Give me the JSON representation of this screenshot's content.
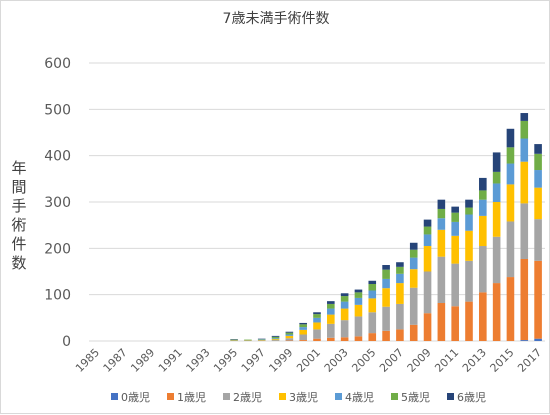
{
  "chart_data": {
    "type": "bar",
    "stacked": true,
    "title": "7歳未満手術件数",
    "ylabel": "年間手術件数",
    "xlabel": "",
    "ylim": [
      0,
      600
    ],
    "yticks": [
      0,
      100,
      200,
      300,
      400,
      500,
      600
    ],
    "grid": true,
    "legend_position": "bottom",
    "categories": [
      "1985",
      "1986",
      "1987",
      "1988",
      "1989",
      "1990",
      "1991",
      "1992",
      "1993",
      "1994",
      "1995",
      "1996",
      "1997",
      "1998",
      "1999",
      "2000",
      "2001",
      "2002",
      "2003",
      "2004",
      "2005",
      "2006",
      "2007",
      "2008",
      "2009",
      "2010",
      "2011",
      "2012",
      "2013",
      "2014",
      "2015",
      "2016",
      "2017"
    ],
    "x_tick_labels": [
      "1985",
      "1987",
      "1989",
      "1991",
      "1993",
      "1995",
      "1997",
      "1999",
      "2001",
      "2003",
      "2005",
      "2007",
      "2009",
      "2011",
      "2013",
      "2015",
      "2017"
    ],
    "series": [
      {
        "name": "0歳児",
        "color": "#4472C4",
        "values": [
          0,
          0,
          0,
          0,
          0,
          0,
          0,
          0,
          0,
          0,
          0,
          0,
          0,
          0,
          0,
          0,
          0,
          0,
          0,
          0,
          0,
          0,
          0,
          0,
          0,
          0,
          0,
          0,
          0,
          0,
          0,
          2,
          5
        ]
      },
      {
        "name": "1歳児",
        "color": "#ED7D31",
        "values": [
          0,
          0,
          0,
          0,
          0,
          0,
          0,
          0,
          0,
          0,
          0,
          0,
          0,
          0,
          1,
          2,
          5,
          7,
          8,
          10,
          17,
          22,
          25,
          35,
          60,
          82,
          75,
          85,
          105,
          125,
          138,
          175,
          168
        ]
      },
      {
        "name": "2歳児",
        "color": "#A5A5A5",
        "values": [
          0,
          0,
          0,
          0,
          0,
          0,
          0,
          0,
          0,
          0,
          0,
          0,
          1,
          2,
          5,
          12,
          20,
          30,
          37,
          43,
          45,
          52,
          55,
          80,
          90,
          100,
          92,
          88,
          100,
          100,
          120,
          120,
          90
        ]
      },
      {
        "name": "3歳児",
        "color": "#FFC000",
        "values": [
          0,
          0,
          0,
          0,
          0,
          0,
          0,
          0,
          0,
          0,
          1,
          1,
          1,
          2,
          5,
          10,
          15,
          20,
          25,
          25,
          30,
          40,
          45,
          40,
          55,
          58,
          60,
          65,
          65,
          75,
          80,
          90,
          68
        ]
      },
      {
        "name": "4歳児",
        "color": "#5B9BD5",
        "values": [
          0,
          0,
          0,
          0,
          0,
          0,
          0,
          0,
          0,
          0,
          1,
          1,
          1,
          2,
          3,
          6,
          10,
          13,
          15,
          15,
          17,
          20,
          20,
          25,
          25,
          25,
          30,
          35,
          35,
          40,
          45,
          50,
          38
        ]
      },
      {
        "name": "5歳児",
        "color": "#70AD47",
        "values": [
          0,
          0,
          0,
          0,
          0,
          0,
          0,
          0,
          0,
          0,
          1,
          1,
          1,
          3,
          4,
          6,
          8,
          10,
          12,
          12,
          14,
          20,
          15,
          17,
          17,
          20,
          20,
          15,
          20,
          25,
          35,
          38,
          35
        ]
      },
      {
        "name": "6歳児",
        "color": "#264478",
        "values": [
          0,
          0,
          0,
          0,
          0,
          0,
          0,
          0,
          0,
          0,
          1,
          0,
          1,
          2,
          2,
          3,
          4,
          6,
          6,
          6,
          7,
          10,
          10,
          15,
          15,
          20,
          13,
          17,
          27,
          42,
          40,
          17,
          21
        ]
      }
    ]
  }
}
